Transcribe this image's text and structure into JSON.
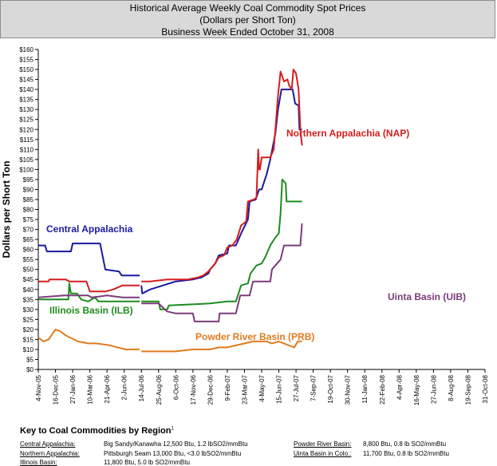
{
  "header": {
    "title_line1": "Historical Average Weekly Coal Commodity Spot Prices",
    "title_line2": "(Dollars per Short Ton)",
    "title_line3": "Business Week Ended October 31, 2008"
  },
  "chart_data": {
    "type": "line",
    "title": "Historical Average Weekly Coal Commodity Spot Prices",
    "ylabel": "Dollars per Short Ton",
    "xlabel": "",
    "ylim": [
      0,
      160
    ],
    "y_ticks": [
      "$0",
      "$5",
      "$10",
      "$15",
      "$20",
      "$25",
      "$30",
      "$35",
      "$40",
      "$45",
      "$50",
      "$55",
      "$60",
      "$65",
      "$70",
      "$75",
      "$80",
      "$85",
      "$90",
      "$95",
      "$100",
      "$105",
      "$110",
      "$115",
      "$120",
      "$125",
      "$130",
      "$135",
      "$140",
      "$145",
      "$150",
      "$155",
      "$160"
    ],
    "x_ticks": [
      "4-Nov-05",
      "16-Dec-05",
      "27-Jan-06",
      "10-Mar-06",
      "21-Apr-06",
      "2-Jun-06",
      "14-Jul-06",
      "25-Aug-06",
      "6-Oct-06",
      "17-Nov-06",
      "29-Dec-06",
      "9-Feb-07",
      "23-Mar-07",
      "4-May-07",
      "15-Jun-07",
      "27-Jul-07",
      "7-Sep-07",
      "19-Oct-07",
      "30-Nov-07",
      "11-Jan-08",
      "22-Feb-08",
      "4-Apr-08",
      "16-May-08",
      "27-Jun-08",
      "8-Aug-08",
      "19-Sep-08",
      "31-Oct-08"
    ],
    "grid": false,
    "series": [
      {
        "name": "Central Appalachia",
        "label": "Central Appalachia",
        "color": "#1a1aa0",
        "points": [
          [
            0,
            62
          ],
          [
            0.4,
            62
          ],
          [
            0.5,
            59
          ],
          [
            1.9,
            59
          ],
          [
            2,
            63
          ],
          [
            3.6,
            63
          ],
          [
            3.9,
            50
          ],
          [
            4.7,
            49
          ],
          [
            4.85,
            47
          ],
          [
            5.9,
            47
          ],
          [
            null,
            null
          ],
          [
            6,
            42
          ],
          [
            6.05,
            38
          ],
          [
            6.5,
            40
          ],
          [
            8,
            44
          ],
          [
            9,
            45
          ],
          [
            9.5,
            46
          ],
          [
            9.9,
            48
          ],
          [
            10,
            50
          ],
          [
            10.3,
            53
          ],
          [
            10.5,
            57
          ],
          [
            11,
            58
          ],
          [
            11.1,
            62
          ],
          [
            11.5,
            62
          ],
          [
            11.8,
            68
          ],
          [
            12.2,
            75
          ],
          [
            12.3,
            84
          ],
          [
            12.65,
            85
          ],
          [
            12.85,
            90
          ],
          [
            13,
            90
          ],
          [
            13.3,
            98
          ],
          [
            13.5,
            105
          ],
          [
            13.8,
            118
          ],
          [
            13.95,
            130
          ],
          [
            14.15,
            140
          ],
          [
            14.8,
            140
          ],
          [
            14.95,
            133
          ],
          [
            15.15,
            132
          ],
          [
            15.2,
            120
          ],
          [
            15.35,
            120
          ]
        ]
      },
      {
        "name": "Northern Appalachia",
        "label": "Northern Appalachia (NAP)",
        "color": "#d21e1e",
        "points": [
          [
            0,
            44
          ],
          [
            0.6,
            44
          ],
          [
            0.65,
            45
          ],
          [
            1.6,
            45
          ],
          [
            1.8,
            44
          ],
          [
            2.8,
            44
          ],
          [
            3,
            39
          ],
          [
            3.9,
            39
          ],
          [
            4.35,
            40
          ],
          [
            4.9,
            42
          ],
          [
            5.9,
            42
          ],
          [
            null,
            null
          ],
          [
            6,
            44
          ],
          [
            6.5,
            44
          ],
          [
            7.5,
            45
          ],
          [
            8.7,
            45
          ],
          [
            9.3,
            46
          ],
          [
            9.6,
            47
          ],
          [
            9.9,
            49
          ],
          [
            10.3,
            53
          ],
          [
            10.5,
            56
          ],
          [
            10.8,
            57
          ],
          [
            11,
            61
          ],
          [
            11.3,
            62
          ],
          [
            11.55,
            65
          ],
          [
            11.8,
            72
          ],
          [
            12.1,
            74
          ],
          [
            12.2,
            84
          ],
          [
            12.55,
            85
          ],
          [
            12.7,
            86
          ],
          [
            12.8,
            110
          ],
          [
            12.85,
            100
          ],
          [
            12.9,
            100
          ],
          [
            13,
            106
          ],
          [
            13.5,
            106
          ],
          [
            13.7,
            110
          ],
          [
            13.8,
            120
          ],
          [
            13.95,
            137
          ],
          [
            14.1,
            149
          ],
          [
            14.3,
            144
          ],
          [
            14.5,
            145
          ],
          [
            14.6,
            142
          ],
          [
            14.75,
            140
          ],
          [
            14.85,
            150
          ],
          [
            15.0,
            148
          ],
          [
            15.15,
            140
          ],
          [
            15.25,
            120
          ],
          [
            15.35,
            112
          ]
        ]
      },
      {
        "name": "Illinois Basin",
        "label": "Illinois Basin (ILB)",
        "color": "#1e8c1e",
        "points": [
          [
            0,
            35
          ],
          [
            1.75,
            35
          ],
          [
            1.8,
            43
          ],
          [
            1.9,
            38
          ],
          [
            2.25,
            38
          ],
          [
            2.5,
            35
          ],
          [
            2.9,
            34
          ],
          [
            3.3,
            36
          ],
          [
            3.5,
            34
          ],
          [
            5.9,
            34
          ],
          [
            null,
            null
          ],
          [
            6,
            34
          ],
          [
            7.0,
            34
          ],
          [
            7.1,
            30
          ],
          [
            7.5,
            30
          ],
          [
            7.6,
            32
          ],
          [
            10,
            33
          ],
          [
            11,
            34
          ],
          [
            11.5,
            34
          ],
          [
            11.8,
            42
          ],
          [
            12.2,
            43
          ],
          [
            12.35,
            48
          ],
          [
            12.7,
            52
          ],
          [
            13,
            53
          ],
          [
            13.2,
            56
          ],
          [
            13.5,
            62
          ],
          [
            13.8,
            66
          ],
          [
            14,
            68
          ],
          [
            14.1,
            78
          ],
          [
            14.2,
            95
          ],
          [
            14.4,
            93
          ],
          [
            14.45,
            84
          ],
          [
            15.35,
            84
          ]
        ]
      },
      {
        "name": "Uinta Basin in Colo.",
        "label": "Uinta Basin (UIB)",
        "color": "#7a3c7a",
        "points": [
          [
            0,
            36
          ],
          [
            1.5,
            37
          ],
          [
            2.5,
            37
          ],
          [
            2.9,
            37
          ],
          [
            3.1,
            36
          ],
          [
            4.0,
            37
          ],
          [
            4.9,
            36
          ],
          [
            5.9,
            36
          ],
          [
            null,
            null
          ],
          [
            6,
            33
          ],
          [
            7,
            33
          ],
          [
            7.5,
            29
          ],
          [
            8,
            28
          ],
          [
            9,
            28
          ],
          [
            9.1,
            24
          ],
          [
            10.5,
            24
          ],
          [
            10.55,
            28
          ],
          [
            11.5,
            28
          ],
          [
            11.75,
            37
          ],
          [
            12.3,
            37
          ],
          [
            12.5,
            44
          ],
          [
            13.5,
            44
          ],
          [
            13.6,
            50
          ],
          [
            14.1,
            55
          ],
          [
            14.3,
            62
          ],
          [
            15.25,
            62
          ],
          [
            15.35,
            73
          ]
        ]
      },
      {
        "name": "Powder River Basin",
        "label": "Powder River Basin (PRB)",
        "color": "#e07b1e",
        "points": [
          [
            0,
            16
          ],
          [
            0.3,
            14
          ],
          [
            0.6,
            15
          ],
          [
            1,
            20
          ],
          [
            1.3,
            19
          ],
          [
            1.6,
            17
          ],
          [
            2.3,
            14
          ],
          [
            2.9,
            13
          ],
          [
            3.4,
            13
          ],
          [
            4.2,
            12
          ],
          [
            4.6,
            11
          ],
          [
            5.1,
            10
          ],
          [
            5.9,
            10
          ],
          [
            null,
            null
          ],
          [
            6,
            9
          ],
          [
            7,
            9
          ],
          [
            8,
            9
          ],
          [
            9,
            10
          ],
          [
            10,
            10
          ],
          [
            10.5,
            11
          ],
          [
            11,
            11
          ],
          [
            11.5,
            12
          ],
          [
            12,
            13
          ],
          [
            12.5,
            14
          ],
          [
            13.3,
            14
          ],
          [
            13.6,
            13
          ],
          [
            14,
            14
          ],
          [
            14.3,
            13
          ],
          [
            14.6,
            12
          ],
          [
            14.9,
            11
          ],
          [
            15.1,
            14
          ],
          [
            15.35,
            14
          ]
        ]
      }
    ]
  },
  "key": {
    "title": "Key to Coal Commodities by Region",
    "footnote_mark": "1",
    "rows": [
      {
        "label": "Central Appalachia:",
        "value": "Big Sandy/Kanawha 12,500 Btu, 1.2 lbSO2/mmBtu",
        "label2": "Powder River Basin:",
        "value2": "8,800 Btu, 0.8 lb SO2/mmBtu"
      },
      {
        "label": "Northern Appalachia:",
        "value": "Pittsburgh Seam 13,000 Btu, <3.0 lbSO2/mmBtu",
        "label2": "Uinta Basin in Colo.:",
        "value2": "11,700 Btu, 0.8 lb SO2/mmBtu"
      },
      {
        "label": "Illinois Basin:",
        "value": "11,800 Btu, 5.0 lb SO2/mmBtu"
      }
    ]
  }
}
